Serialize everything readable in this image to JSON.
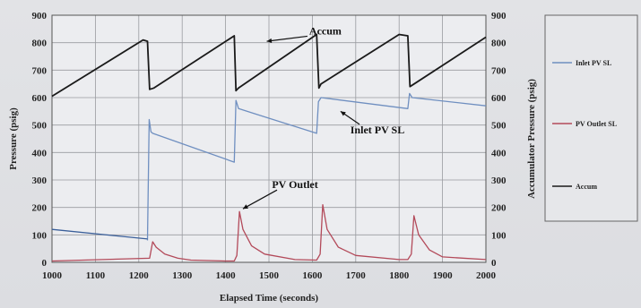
{
  "chart_data": {
    "type": "line",
    "title": "",
    "xlabel": "Elapsed Time (seconds)",
    "ylabel_left": "Pressure (psig)",
    "ylabel_right": "Accumulator Pressure (psig)",
    "xlim": [
      1000,
      2000
    ],
    "ylim_left": [
      0,
      900
    ],
    "ylim_right": [
      0,
      900
    ],
    "x_ticks": [
      "1000",
      "1100",
      "1200",
      "1300",
      "1400",
      "1500",
      "1600",
      "1700",
      "1800",
      "1900",
      "2000"
    ],
    "y_ticks_left": [
      "0",
      "100",
      "200",
      "300",
      "400",
      "500",
      "600",
      "700",
      "800",
      "900"
    ],
    "y_ticks_right": [
      "0",
      "100",
      "200",
      "300",
      "400",
      "500",
      "600",
      "700",
      "800",
      "900"
    ],
    "grid": true,
    "legend_position": "right",
    "series": [
      {
        "name": "Inlet PV SL",
        "color": "#6f8fc0",
        "axis": "left",
        "x": [
          1220,
          1224,
          1228,
          1232,
          1420,
          1424,
          1430,
          1610,
          1614,
          1620,
          1820,
          1824,
          1830,
          2000
        ],
        "y": [
          80,
          520,
          475,
          470,
          365,
          590,
          560,
          470,
          585,
          600,
          560,
          615,
          600,
          570
        ]
      },
      {
        "name": "PV Outlet SL",
        "color": "#b34a5a",
        "axis": "left",
        "x": [
          1000,
          1225,
          1232,
          1240,
          1260,
          1290,
          1320,
          1400,
          1420,
          1426,
          1432,
          1440,
          1460,
          1490,
          1560,
          1610,
          1618,
          1624,
          1634,
          1660,
          1700,
          1800,
          1820,
          1828,
          1834,
          1845,
          1870,
          1900,
          2000
        ],
        "y": [
          5,
          15,
          75,
          55,
          30,
          15,
          8,
          5,
          5,
          25,
          185,
          120,
          60,
          30,
          10,
          8,
          30,
          210,
          120,
          55,
          25,
          10,
          10,
          30,
          170,
          100,
          45,
          20,
          10
        ]
      },
      {
        "name": "Accum",
        "color": "#1a1a1a",
        "axis": "right",
        "x": [
          1000,
          1210,
          1220,
          1225,
          1235,
          1420,
          1424,
          1430,
          1610,
          1615,
          1620,
          1800,
          1820,
          1825,
          1830,
          2000
        ],
        "y": [
          605,
          810,
          805,
          630,
          635,
          825,
          625,
          635,
          830,
          635,
          650,
          830,
          825,
          640,
          645,
          820
        ]
      },
      {
        "name": "",
        "color": "#3a5f9a",
        "axis": "left",
        "x": [
          1000,
          1220
        ],
        "y": [
          120,
          85
        ]
      }
    ],
    "annotations": [
      {
        "text": "Accum",
        "x": 1630,
        "y": 830
      },
      {
        "text": "Inlet PV SL",
        "x": 1750,
        "y": 470
      },
      {
        "text": "PV Outlet",
        "x": 1560,
        "y": 270
      }
    ],
    "legend": [
      "Inlet PV SL",
      "PV Outlet SL",
      "Accum"
    ]
  }
}
